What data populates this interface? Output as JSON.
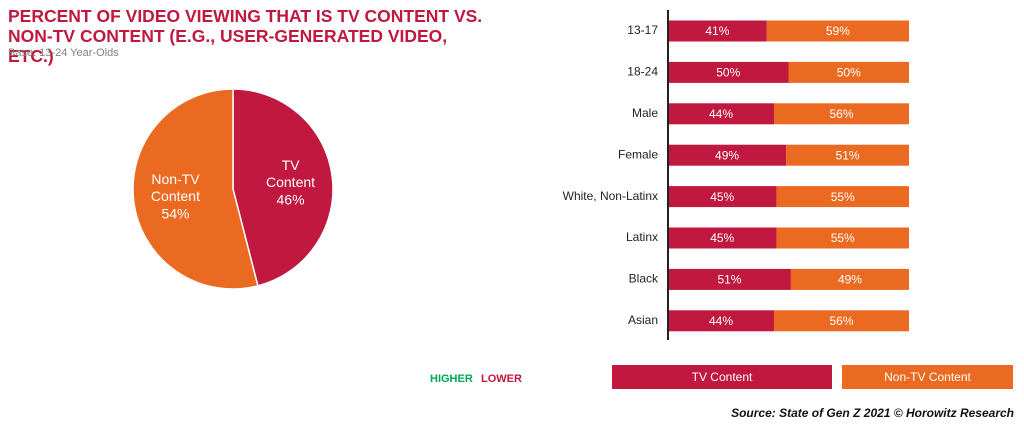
{
  "header": {
    "title": "PERCENT OF VIDEO VIEWING THAT IS TV CONTENT VS. NON-TV CONTENT (E.G., USER-GENERATED VIDEO, ETC.)",
    "subtitle": "Base: 13-24 Year-Olds"
  },
  "chart_data": [
    {
      "type": "pie",
      "categories": [
        "TV Content",
        "Non-TV Content"
      ],
      "values": [
        46,
        54
      ],
      "value_labels": [
        "46%",
        "54%"
      ],
      "colors": [
        "#c0183f",
        "#eb6a22"
      ]
    },
    {
      "type": "bar",
      "orientation": "horizontal",
      "stacked": true,
      "categories": [
        "13-17",
        "18-24",
        "Male",
        "Female",
        "White, Non-Latinx",
        "Latinx",
        "Black",
        "Asian"
      ],
      "series": [
        {
          "name": "TV Content",
          "color": "#c0183f",
          "values": [
            41,
            50,
            44,
            49,
            45,
            45,
            51,
            44
          ],
          "value_labels": [
            "41%",
            "50%",
            "44%",
            "49%",
            "45%",
            "45%",
            "51%",
            "44%"
          ]
        },
        {
          "name": "Non-TV Content",
          "color": "#eb6a22",
          "values": [
            59,
            50,
            56,
            51,
            55,
            55,
            49,
            56
          ],
          "value_labels": [
            "59%",
            "50%",
            "56%",
            "51%",
            "55%",
            "55%",
            "49%",
            "56%"
          ]
        }
      ],
      "xlim": [
        0,
        100
      ],
      "legend": "bottom"
    }
  ],
  "annotations": [
    {
      "text": "HIGHER",
      "color": "#00a651"
    },
    {
      "text": "LOWER",
      "color": "#c0183f"
    }
  ],
  "source": "Source: State of Gen Z 2021 © Horowitz Research"
}
